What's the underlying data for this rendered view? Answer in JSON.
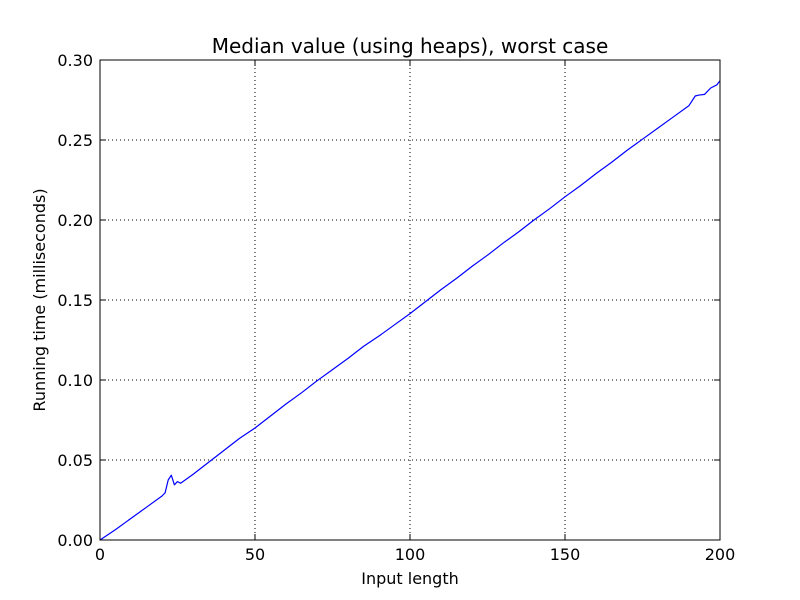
{
  "chart_data": {
    "type": "line",
    "title": "Median value (using heaps), worst case",
    "xlabel": "Input length",
    "ylabel": "Running time (milliseconds)",
    "xlim": [
      0,
      200
    ],
    "ylim": [
      0.0,
      0.3
    ],
    "xticks": [
      0,
      50,
      100,
      150,
      200
    ],
    "xtick_labels": [
      "0",
      "50",
      "100",
      "150",
      "200"
    ],
    "yticks": [
      0.0,
      0.05,
      0.1,
      0.15,
      0.2,
      0.25,
      0.3
    ],
    "ytick_labels": [
      "0.00",
      "0.05",
      "0.10",
      "0.15",
      "0.20",
      "0.25",
      "0.30"
    ],
    "grid": true,
    "series": [
      {
        "color": "#0000ff",
        "x": [
          0,
          5,
          10,
          15,
          20,
          21,
          22,
          23,
          24,
          25,
          26,
          30,
          35,
          40,
          45,
          50,
          55,
          60,
          65,
          70,
          75,
          80,
          85,
          90,
          95,
          100,
          105,
          110,
          115,
          120,
          125,
          130,
          135,
          140,
          145,
          150,
          155,
          160,
          165,
          170,
          175,
          180,
          185,
          190,
          192,
          193,
          195,
          197,
          199,
          200
        ],
        "y": [
          0.0,
          0.0065,
          0.0135,
          0.0205,
          0.0275,
          0.0295,
          0.0375,
          0.0405,
          0.0345,
          0.0365,
          0.0355,
          0.041,
          0.0485,
          0.056,
          0.0635,
          0.07,
          0.0775,
          0.085,
          0.092,
          0.0995,
          0.1065,
          0.1135,
          0.121,
          0.1275,
          0.1345,
          0.1415,
          0.149,
          0.1565,
          0.1635,
          0.171,
          0.178,
          0.1855,
          0.1925,
          0.2,
          0.207,
          0.2145,
          0.2215,
          0.229,
          0.236,
          0.2435,
          0.2505,
          0.2575,
          0.2645,
          0.2715,
          0.2775,
          0.278,
          0.2785,
          0.2825,
          0.2845,
          0.287
        ]
      }
    ]
  }
}
